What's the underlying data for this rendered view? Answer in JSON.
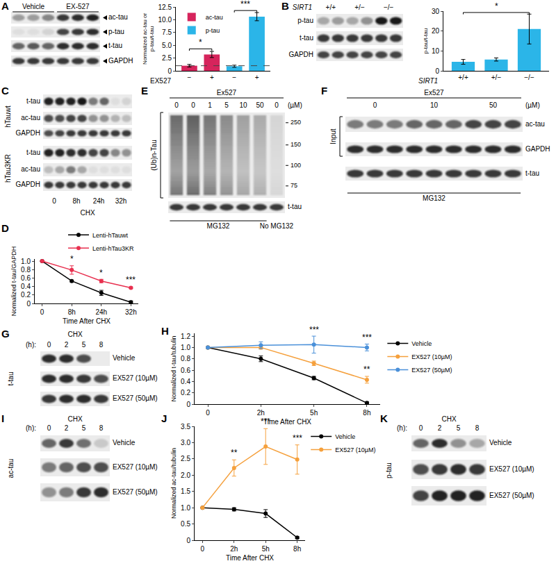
{
  "chart_data": [
    {
      "type": "bar",
      "categories": [
        "−",
        "+",
        "−",
        "+"
      ],
      "xlabel": "EX527",
      "ylabel": [
        "Normalized ac-tau or",
        "p-tau/t-tau"
      ],
      "series": [
        {
          "name": "ac-tau",
          "color": "#d6245c",
          "values": [
            1.0,
            3.2,
            null,
            null
          ],
          "errors": [
            0.25,
            0.6,
            null,
            null
          ]
        },
        {
          "name": "p-tau",
          "color": "#2bb5e8",
          "values": [
            null,
            null,
            0.9,
            10.6
          ],
          "errors": [
            null,
            null,
            0.2,
            0.8
          ]
        }
      ],
      "ylim": [
        0,
        12.5
      ],
      "yticks": [
        0,
        2.5,
        {
          "value": 5,
          "label": "5.0"
        },
        7.5,
        {
          "value": 10,
          "label": "10.0"
        },
        12.5
      ],
      "reference_line": 1,
      "brackets": [
        {
          "from": 0,
          "to": 1,
          "y": 4.3,
          "text": "*"
        },
        {
          "from": 2,
          "to": 3,
          "y": 11.8,
          "text": "***"
        }
      ],
      "legend": "top left",
      "grid": false
    },
    {
      "type": "bar",
      "categories": [
        "+/+",
        "+/−",
        "−/−"
      ],
      "xlabel": "SIRT1",
      "ylabel": "p-tau/t-tau",
      "color": "#2bb5e8",
      "values": [
        4.5,
        5.7,
        21
      ],
      "errors": [
        1.2,
        0.8,
        7.5
      ],
      "ylim": [
        0,
        30
      ],
      "yticks": [
        0,
        10,
        20,
        30
      ],
      "brackets": [
        {
          "from": 0,
          "to": 2,
          "y": 29.3,
          "text": "*"
        }
      ],
      "grid": false
    },
    {
      "panel": "D",
      "type": "line",
      "categories": [
        "0",
        "8h",
        "24h",
        "32h"
      ],
      "xlabel": "Time After CHX",
      "ylabel": "Normalized t-tau/GAPDH",
      "marker": "circle",
      "series": [
        {
          "name": "Lenti-hTauwt",
          "color": "#000000",
          "values": [
            1.0,
            0.53,
            0.25,
            0.03
          ],
          "errors": [
            0,
            0.02,
            0.06,
            0.03
          ]
        },
        {
          "name": "Lenti-hTau3KR",
          "color": "#e8304f",
          "values": [
            1.0,
            0.79,
            0.53,
            0.37
          ],
          "errors": [
            0,
            0.1,
            0.04,
            0.02
          ]
        }
      ],
      "ylim": [
        0,
        1.05
      ],
      "yticks": [
        0,
        0.2,
        0.4,
        0.6,
        0.8,
        {
          "value": 1,
          "label": "1.0"
        }
      ],
      "annotations": [
        {
          "x": 1,
          "y": 0.91,
          "text": "*"
        },
        {
          "x": 2,
          "y": 0.58,
          "text": "*"
        },
        {
          "x": 3,
          "y": 0.41,
          "text": "***"
        }
      ],
      "legend": "top right",
      "grid": false
    },
    {
      "panel": "H",
      "type": "line",
      "categories": [
        "0",
        "2h",
        "5h",
        "8h"
      ],
      "xlabel": "Time After CHX",
      "ylabel": "Normalized t-tau/tubulin",
      "marker": "circle",
      "series": [
        {
          "name": "Vehicle",
          "color": "#000000",
          "values": [
            1.0,
            0.8,
            0.46,
            0.02
          ],
          "errors": [
            0,
            0.05,
            0.03,
            0.02
          ]
        },
        {
          "name": "EX527 (10µM)",
          "color": "#f5a03c",
          "values": [
            1.0,
            1.0,
            0.72,
            0.43
          ],
          "errors": [
            0,
            0.03,
            0.04,
            0.06
          ]
        },
        {
          "name": "EX527 (50µM)",
          "color": "#4a90d9",
          "values": [
            1.0,
            1.04,
            1.05,
            1.0
          ],
          "errors": [
            0,
            0.06,
            0.15,
            0.06
          ]
        }
      ],
      "ylim": [
        0,
        1.25
      ],
      "yticks": [
        0,
        0.2,
        0.4,
        0.6,
        0.8,
        {
          "value": 1,
          "label": "1.0"
        },
        1.2
      ],
      "annotations": [
        {
          "x": 2,
          "y": 1.2,
          "text": "***"
        },
        {
          "x": 3,
          "y": 1.07,
          "text": "***"
        },
        {
          "x": 3,
          "y": 0.5,
          "text": "**"
        }
      ],
      "legend": "right",
      "grid": false
    },
    {
      "panel": "J",
      "type": "line",
      "categories": [
        "0",
        "2h",
        "5h",
        "8h"
      ],
      "xlabel": "Time After CHX",
      "ylabel": "Normalized ac-tau/tubulin",
      "marker": "circle",
      "series": [
        {
          "name": "Vehicle",
          "color": "#000000",
          "values": [
            1.0,
            0.95,
            0.82,
            0.08
          ],
          "errors": [
            0,
            0.05,
            0.12,
            0.03
          ]
        },
        {
          "name": "EX527 (10µM)",
          "color": "#f5a03c",
          "values": [
            1.0,
            2.22,
            2.88,
            2.48
          ],
          "errors": [
            0,
            0.25,
            0.55,
            0.45
          ]
        }
      ],
      "ylim": [
        0,
        3.5
      ],
      "yticks": [
        0,
        0.5,
        {
          "value": 1,
          "label": "1.0"
        },
        1.5,
        {
          "value": 2,
          "label": "2.0"
        },
        2.5,
        {
          "value": 3,
          "label": "3.0"
        },
        3.5
      ],
      "annotations": [
        {
          "x": 1,
          "y": 2.5,
          "text": "**"
        },
        {
          "x": 2,
          "y": 3.45,
          "text": "***"
        },
        {
          "x": 3,
          "y": 2.95,
          "text": "***"
        }
      ],
      "legend": "right",
      "grid": false
    }
  ],
  "blots": [
    {
      "panel": "A",
      "lanes": 6,
      "lane_labels": [
        {
          "text": "Vehicle",
          "from": 0,
          "to": 2
        },
        {
          "text": "EX-527",
          "from": 3,
          "to": 5
        }
      ],
      "rows": [
        {
          "label": "ac-tau",
          "bands": [
            0.35,
            0.35,
            0.45,
            0.8,
            0.85,
            0.9
          ]
        },
        {
          "label": "p-tau",
          "bands": [
            0.05,
            0.05,
            0.1,
            0.75,
            0.8,
            0.85
          ]
        },
        {
          "label": "t-tau",
          "bands": [
            0.6,
            0.65,
            0.6,
            0.85,
            0.85,
            0.85
          ]
        },
        {
          "label": "GAPDH",
          "bands": [
            0.8,
            0.8,
            0.8,
            0.8,
            0.8,
            0.8
          ]
        }
      ]
    },
    {
      "panel": "B",
      "lanes": 6,
      "unit_label": "SIRT1",
      "lane_labels": [
        {
          "text": "+/+",
          "from": 0,
          "to": 1
        },
        {
          "text": "+/−",
          "from": 2,
          "to": 3
        },
        {
          "text": "−/−",
          "from": 4,
          "to": 5
        }
      ],
      "rows": [
        {
          "label": "p-tau",
          "bands": [
            0.3,
            0.35,
            0.3,
            0.4,
            0.95,
            0.95
          ]
        },
        {
          "label": "t-tau",
          "bands": [
            0.8,
            0.8,
            0.8,
            0.8,
            0.8,
            0.8
          ]
        },
        {
          "label": "GAPDH",
          "bands": [
            0.75,
            0.75,
            0.75,
            0.75,
            0.75,
            0.75
          ]
        }
      ]
    },
    {
      "panel": "C",
      "lanes": 8,
      "title": "CHX",
      "lane_labels": [
        {
          "text": "0",
          "from": 0,
          "to": 1
        },
        {
          "text": "8h",
          "from": 2,
          "to": 3
        },
        {
          "text": "24h",
          "from": 4,
          "to": 5
        },
        {
          "text": "32h",
          "from": 6,
          "to": 7
        }
      ],
      "groups": [
        {
          "label": "hTauwt",
          "rows": [
            {
              "label": "t-tau",
              "bands": [
                0.9,
                0.9,
                0.9,
                0.95,
                0.5,
                0.6,
                0.05,
                0.1
              ]
            },
            {
              "label": "ac-tau",
              "bands": [
                0.7,
                0.7,
                0.75,
                0.75,
                0.4,
                0.4,
                0.25,
                0.2
              ]
            },
            {
              "label": "GAPDH",
              "bands": [
                0.7,
                0.75,
                0.8,
                0.8,
                0.8,
                0.8,
                0.8,
                0.8
              ]
            }
          ]
        },
        {
          "label": "hTau3KR",
          "rows": [
            {
              "label": "t-tau",
              "bands": [
                0.9,
                0.9,
                0.85,
                0.85,
                0.75,
                0.75,
                0.45,
                0.4
              ]
            },
            {
              "label": "ac-tau",
              "bands": [
                0.2,
                0.3,
                0.5,
                0.3,
                0.05,
                0.05,
                0.05,
                0.05
              ]
            },
            {
              "label": "GAPDH",
              "bands": [
                0.8,
                0.8,
                0.8,
                0.8,
                0.8,
                0.8,
                0.8,
                0.8
              ]
            }
          ]
        }
      ]
    },
    {
      "panel": "E",
      "lanes": 7,
      "title": "Ex527",
      "unit_label": "(µM)",
      "lane_labels": [
        {
          "text": "0",
          "from": 0,
          "to": 0
        },
        {
          "text": "0",
          "from": 1,
          "to": 1
        },
        {
          "text": "1",
          "from": 2,
          "to": 2
        },
        {
          "text": "5",
          "from": 3,
          "to": 3
        },
        {
          "text": "10",
          "from": 4,
          "to": 4
        },
        {
          "text": "50",
          "from": 5,
          "to": 5
        },
        {
          "text": "0",
          "from": 6,
          "to": 6
        }
      ],
      "side_label": "(Ub)n-Tau",
      "markers": [
        250,
        150,
        100,
        75
      ],
      "rows": [
        {
          "bands": [
            0.6,
            0.65,
            0.55,
            0.45,
            0.35,
            0.3,
            0.1
          ]
        },
        {
          "label": "t-tau",
          "bands": [
            0.8,
            0.8,
            0.8,
            0.8,
            0.8,
            0.8,
            0.8
          ]
        }
      ],
      "footers": [
        {
          "text": "MG132",
          "from": 0,
          "to": 5
        },
        {
          "text": "No MG132",
          "from": 6,
          "to": 6
        }
      ]
    },
    {
      "panel": "F",
      "lanes": 9,
      "title": "Ex527",
      "unit_label": "(µM)",
      "lane_labels": [
        {
          "text": "0",
          "from": 0,
          "to": 2
        },
        {
          "text": "10",
          "from": 3,
          "to": 5
        },
        {
          "text": "50",
          "from": 6,
          "to": 8
        }
      ],
      "side_label": "Input",
      "rows": [
        {
          "label": "ac-tau",
          "bands": [
            0.5,
            0.5,
            0.5,
            0.6,
            0.6,
            0.6,
            0.75,
            0.75,
            0.75
          ]
        },
        {
          "label": "GAPDH",
          "bands": [
            0.85,
            0.85,
            0.85,
            0.85,
            0.85,
            0.85,
            0.85,
            0.85,
            0.85
          ]
        },
        {
          "label": "t-tau",
          "bands": [
            0.8,
            0.8,
            0.8,
            0.8,
            0.8,
            0.8,
            0.8,
            0.8,
            0.8
          ]
        }
      ],
      "footers": [
        {
          "text": "MG132",
          "from": 0,
          "to": 8
        }
      ]
    },
    {
      "panel": "G",
      "lanes": 4,
      "title": "CHX",
      "unit_label": "(h):",
      "lane_labels": [
        {
          "text": "0",
          "from": 0,
          "to": 0
        },
        {
          "text": "2",
          "from": 1,
          "to": 1
        },
        {
          "text": "5",
          "from": 2,
          "to": 2
        },
        {
          "text": "8",
          "from": 3,
          "to": 3
        }
      ],
      "side_label": "t-tau",
      "rows": [
        {
          "label": "Vehicle",
          "bands": [
            0.85,
            0.85,
            0.7,
            0.0
          ]
        },
        {
          "label": "EX527 (10µM)",
          "bands": [
            0.85,
            0.85,
            0.8,
            0.7
          ]
        },
        {
          "label": "EX527 (50µM)",
          "bands": [
            0.8,
            0.85,
            0.85,
            0.8
          ]
        }
      ]
    },
    {
      "panel": "I",
      "lanes": 4,
      "title": "CHX",
      "unit_label": "(h):",
      "lane_labels": [
        {
          "text": "0",
          "from": 0,
          "to": 0
        },
        {
          "text": "2",
          "from": 1,
          "to": 1
        },
        {
          "text": "5",
          "from": 2,
          "to": 2
        },
        {
          "text": "8",
          "from": 3,
          "to": 3
        }
      ],
      "side_label": "ac-tau",
      "rows": [
        {
          "label": "Vehicle",
          "bands": [
            0.6,
            0.8,
            0.55,
            0.15
          ]
        },
        {
          "label": "EX527 (10µM)",
          "bands": [
            0.5,
            0.6,
            0.7,
            0.7
          ]
        },
        {
          "label": "EX527 (50µM)",
          "bands": [
            0.4,
            0.5,
            0.8,
            0.85
          ]
        }
      ]
    },
    {
      "panel": "K",
      "lanes": 4,
      "title": "CHX",
      "unit_label": "(h):",
      "lane_labels": [
        {
          "text": "0",
          "from": 0,
          "to": 0
        },
        {
          "text": "2",
          "from": 1,
          "to": 1
        },
        {
          "text": "5",
          "from": 2,
          "to": 2
        },
        {
          "text": "8",
          "from": 3,
          "to": 3
        }
      ],
      "side_label": "p-tau",
      "rows": [
        {
          "label": "Vehicle",
          "bands": [
            0.6,
            0.85,
            0.4,
            0.3
          ]
        },
        {
          "label": "EX527 (10µM)",
          "bands": [
            0.7,
            0.8,
            0.85,
            0.8
          ]
        },
        {
          "label": "EX527 (50µM)",
          "bands": [
            0.75,
            0.9,
            0.9,
            0.9
          ]
        }
      ]
    }
  ]
}
